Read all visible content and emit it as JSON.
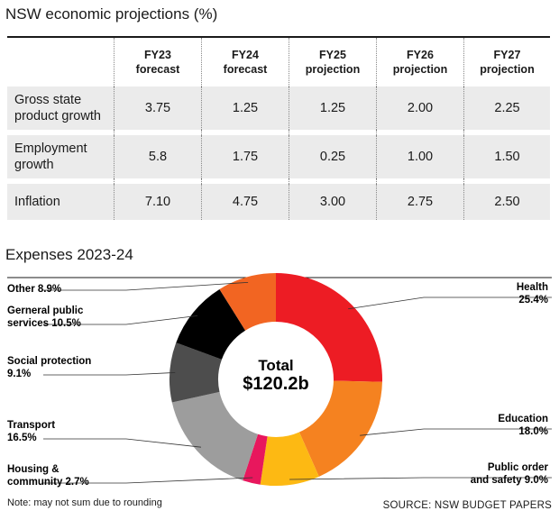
{
  "table_title": "NSW economic projections (%)",
  "table": {
    "columns": [
      {
        "line1": "FY23",
        "line2": "forecast"
      },
      {
        "line1": "FY24",
        "line2": "forecast"
      },
      {
        "line1": "FY25",
        "line2": "projection"
      },
      {
        "line1": "FY26",
        "line2": "projection"
      },
      {
        "line1": "FY27",
        "line2": "projection"
      }
    ],
    "rows": [
      {
        "label1": "Gross state",
        "label2": "product growth",
        "values": [
          "3.75",
          "1.25",
          "1.25",
          "2.00",
          "2.25"
        ]
      },
      {
        "label1": "Employment",
        "label2": "growth",
        "values": [
          "5.8",
          "1.75",
          "0.25",
          "1.00",
          "1.50"
        ]
      },
      {
        "label1": "Inflation",
        "label2": "",
        "values": [
          "7.10",
          "4.75",
          "3.00",
          "2.75",
          "2.50"
        ]
      }
    ]
  },
  "chart_title": "Expenses 2023-24",
  "chart_data": {
    "type": "pie",
    "title": "Expenses 2023-24",
    "center_label": "Total",
    "center_value": "$120.2b",
    "slices": [
      {
        "name": "Health",
        "value": 25.4,
        "label1": "Health",
        "label2": "25.4%",
        "color": "#ed1c24"
      },
      {
        "name": "Education",
        "value": 18.0,
        "label1": "Education",
        "label2": "18.0%",
        "color": "#f58220"
      },
      {
        "name": "Public order and safety",
        "value": 9.0,
        "label1": "Public order",
        "label2": "and safety 9.0%",
        "color": "#fdb913"
      },
      {
        "name": "Housing & community",
        "value": 2.7,
        "label1": "Housing &",
        "label2": "community 2.7%",
        "color": "#e8175d"
      },
      {
        "name": "Transport",
        "value": 16.5,
        "label1": "Transport",
        "label2": "16.5%",
        "color": "#9d9d9d"
      },
      {
        "name": "Social protection",
        "value": 9.1,
        "label1": "Social protection",
        "label2": "9.1%",
        "color": "#4d4d4d"
      },
      {
        "name": "Gerneral public services",
        "value": 10.5,
        "label1": "Gerneral public",
        "label2": "services 10.5%",
        "color": "#000000"
      },
      {
        "name": "Other",
        "value": 8.9,
        "label1": "Other 8.9%",
        "label2": "",
        "color": "#f26522"
      }
    ]
  },
  "note": "Note: may not sum due to rounding",
  "source": "SOURCE: NSW BUDGET PAPERS"
}
